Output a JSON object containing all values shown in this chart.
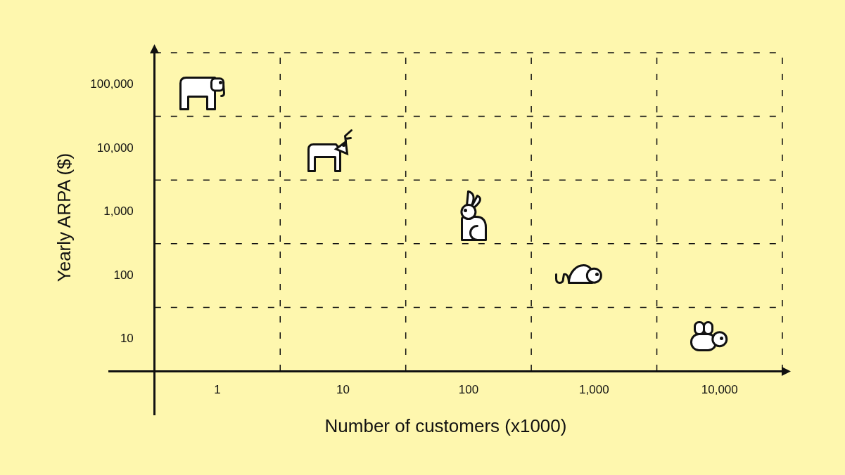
{
  "chart_data": {
    "type": "scatter",
    "xlabel": "Number of customers (x1000)",
    "ylabel": "Yearly ARPA ($)",
    "x": [
      1,
      10,
      100,
      1000,
      10000
    ],
    "values": [
      100000,
      10000,
      1000,
      100,
      10
    ],
    "color": "#ffffff",
    "log": "xy",
    "xlim": [
      0.137,
      31623
    ],
    "ylim": [
      0.655,
      316228
    ],
    "xticks": [
      1,
      10,
      100,
      {
        "value": 1000,
        "label": "1,000"
      },
      {
        "value": 10000,
        "label": "10,000"
      }
    ],
    "yticks": [
      10,
      100,
      {
        "value": 1000,
        "label": "1,000"
      },
      {
        "value": 10000,
        "label": "10,000"
      },
      {
        "value": 100000,
        "label": "100,000"
      }
    ],
    "grid": true
  }
}
